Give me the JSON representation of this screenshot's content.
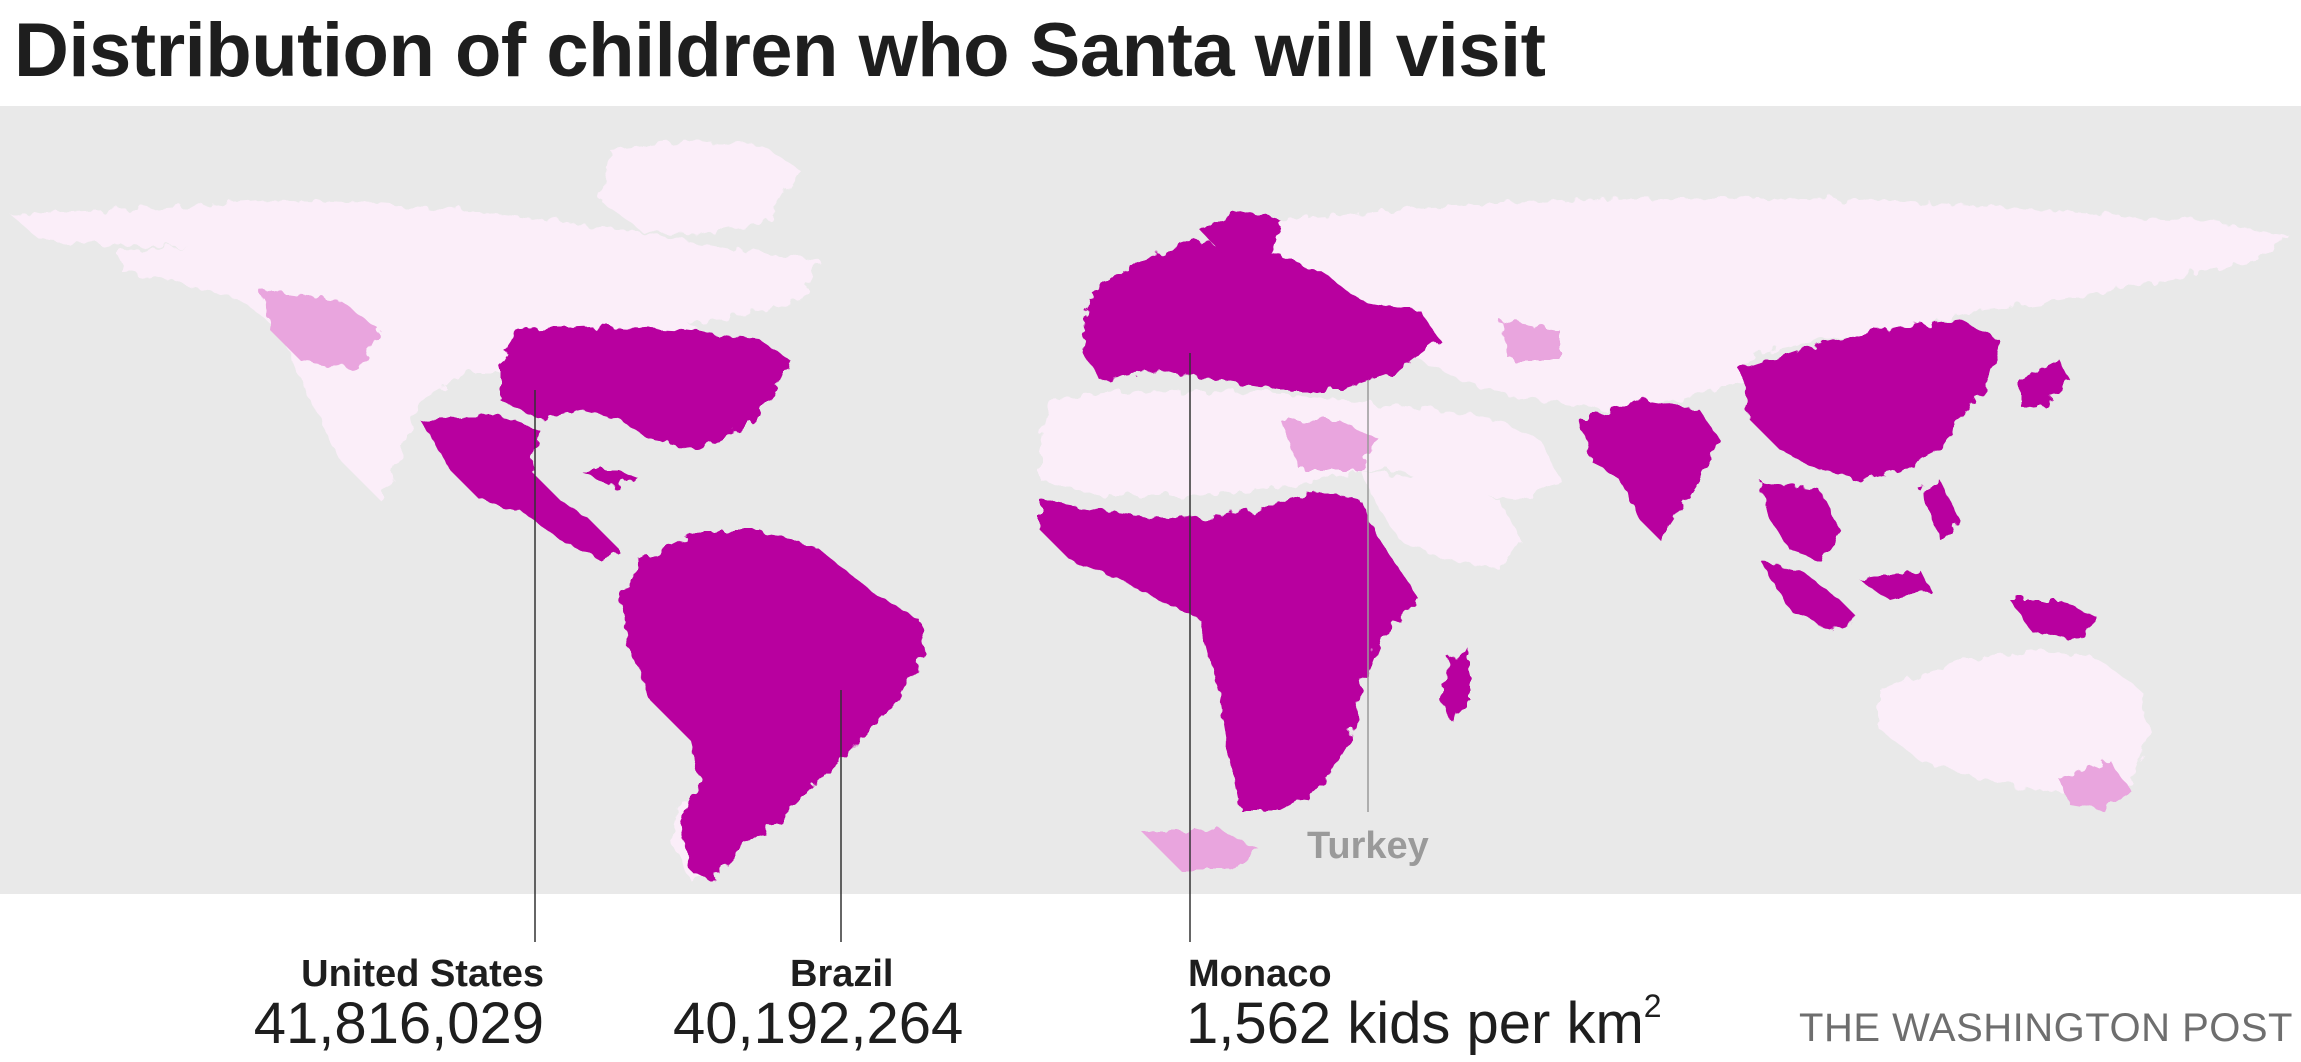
{
  "title": "Distribution of children who Santa will visit",
  "colors": {
    "ocean": "#e9e9e9",
    "land_low": "#fbeef9",
    "land_mid": "#e9a5de",
    "land_high": "#b8009f",
    "leader_line": "#333333"
  },
  "callouts": [
    {
      "name": "United States",
      "value": "41,816,029"
    },
    {
      "name": "Brazil",
      "value": "40,192,264"
    },
    {
      "name": "Monaco",
      "value": "1,562 kids per km",
      "value_sup": "2"
    }
  ],
  "highlight_label": "Turkey",
  "credit": "THE WASHINGTON POST"
}
